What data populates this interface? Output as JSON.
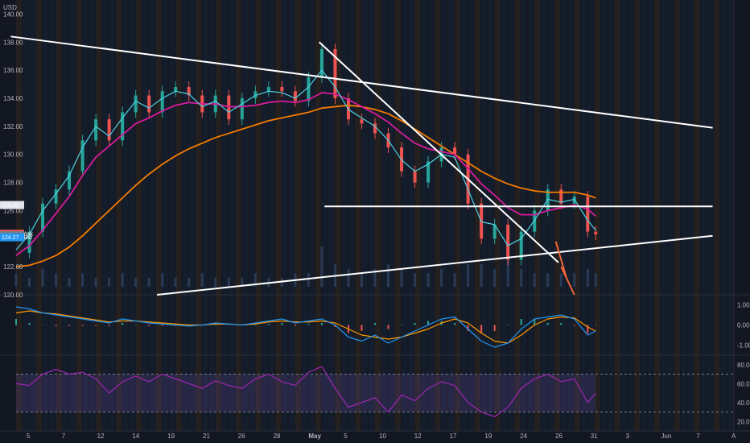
{
  "currency": "USD",
  "chart_data": {
    "type": "line",
    "title": "",
    "price_axis": {
      "ylim": [
        120,
        141
      ],
      "ticks": [
        "140.00",
        "138.00",
        "136.00",
        "134.00",
        "132.00",
        "130.00",
        "128.00",
        "126.00",
        "124.00",
        "122.00",
        "120.00"
      ]
    },
    "price_tags": [
      {
        "label": "126.31",
        "value": 126.31,
        "color": "#e0e3eb",
        "text_color": "#131722"
      },
      {
        "label": "124.35 · Ask",
        "value": 124.35,
        "color": "#ef5350",
        "text_color": "#ffffff"
      },
      {
        "label": "124.33",
        "value": 124.33,
        "color": "#787b86",
        "text_color": "#ffffff"
      },
      {
        "label": "124.27 · Bid",
        "value": 124.27,
        "color": "#2196f3",
        "text_color": "#ffffff"
      }
    ],
    "macd_axis": {
      "ylim": [
        -1.5,
        1.5
      ],
      "ticks": [
        "1.00",
        "0.00",
        "-1.00"
      ]
    },
    "rsi_axis": {
      "ylim": [
        10,
        90
      ],
      "ticks": [
        "80.00",
        "60.00",
        "40.00",
        "20.00"
      ],
      "bands": [
        70,
        30
      ]
    },
    "x_ticks": [
      "5",
      "7",
      "12",
      "14",
      "19",
      "21",
      "26",
      "28",
      "May",
      "5",
      "10",
      "12",
      "17",
      "19",
      "24",
      "26",
      "31",
      "3",
      "Jun",
      "7",
      "A"
    ],
    "x_tick_bold": "May",
    "series": [
      {
        "x": [
          0,
          5,
          10,
          15,
          20,
          25,
          30,
          35,
          40,
          45,
          50,
          55,
          60,
          65,
          70,
          75,
          80,
          85,
          90,
          95,
          100,
          105,
          110,
          115,
          120,
          125,
          130,
          135,
          140,
          145,
          150,
          155,
          160,
          165,
          170,
          175,
          180,
          185,
          190,
          195,
          200,
          205,
          210,
          215,
          218
        ],
        "values": [
          123.0,
          124.5,
          126.5,
          127.5,
          128.8,
          131.0,
          132.5,
          131.0,
          133.0,
          134.2,
          133.0,
          134.5,
          134.8,
          134.2,
          133.0,
          134.2,
          132.5,
          134.0,
          134.5,
          134.8,
          134.5,
          133.8,
          135.5,
          137.5,
          134.0,
          132.5,
          132.2,
          131.5,
          130.5,
          128.8,
          128.0,
          129.5,
          130.5,
          130.0,
          126.5,
          124.0,
          125.0,
          122.5,
          124.5,
          126.0,
          127.5,
          126.5,
          127.0,
          124.5,
          124.3
        ]
      },
      {
        "name": "",
        "color": "#4dd0e1",
        "values": [
          123.2,
          124.3,
          126.0,
          127.2,
          128.5,
          130.5,
          132.0,
          131.3,
          132.6,
          133.8,
          133.3,
          134.0,
          134.5,
          134.3,
          133.4,
          133.8,
          133.0,
          133.6,
          134.2,
          134.5,
          134.4,
          134.0,
          134.8,
          136.0,
          134.8,
          133.2,
          132.6,
          132.0,
          131.0,
          129.6,
          128.8,
          129.3,
          130.0,
          129.8,
          127.5,
          125.2,
          125.0,
          123.5,
          124.0,
          125.3,
          126.8,
          126.6,
          126.8,
          125.3,
          124.6
        ]
      },
      {
        "name": "",
        "color": "#d81b9c",
        "values": [
          122.8,
          123.5,
          124.6,
          125.8,
          127.0,
          128.5,
          129.8,
          130.6,
          131.4,
          132.2,
          132.6,
          133.1,
          133.5,
          133.7,
          133.6,
          133.6,
          133.4,
          133.4,
          133.5,
          133.7,
          133.8,
          133.7,
          133.9,
          134.4,
          134.3,
          133.9,
          133.4,
          132.9,
          132.3,
          131.5,
          130.8,
          130.4,
          130.2,
          130.0,
          129.0,
          127.9,
          127.1,
          126.2,
          125.7,
          125.7,
          126.0,
          126.2,
          126.4,
          126.1,
          125.6
        ]
      },
      {
        "name": "",
        "color": "#f57c00",
        "values": [
          122.0,
          122.1,
          122.4,
          122.8,
          123.4,
          124.2,
          125.1,
          126.0,
          126.9,
          127.8,
          128.6,
          129.3,
          129.9,
          130.4,
          130.8,
          131.2,
          131.5,
          131.8,
          132.1,
          132.4,
          132.6,
          132.8,
          133.0,
          133.3,
          133.4,
          133.5,
          133.4,
          133.2,
          132.9,
          132.4,
          131.8,
          131.2,
          130.6,
          130.0,
          129.4,
          128.8,
          128.3,
          127.9,
          127.6,
          127.4,
          127.3,
          127.3,
          127.3,
          127.1,
          126.9
        ]
      }
    ],
    "trendlines": [
      {
        "points": [
          [
            -2,
            138.4
          ],
          [
            262,
            131.9
          ]
        ],
        "color": "#ffffff"
      },
      {
        "points": [
          [
            53,
            120.0
          ],
          [
            262,
            124.2
          ]
        ],
        "color": "#ffffff"
      },
      {
        "points": [
          [
            114,
            138.0
          ],
          [
            204,
            122.3
          ]
        ],
        "color": "#ffffff"
      },
      {
        "points": [
          [
            116,
            126.3
          ],
          [
            262,
            126.3
          ]
        ],
        "color": "#ffffff"
      }
    ],
    "projection_arrow": {
      "points": [
        [
          203,
          123.8
        ],
        [
          207,
          121.2
        ],
        [
          205,
          122.0
        ],
        [
          210,
          120.0
        ]
      ],
      "color": "#f0663a"
    },
    "macd": {
      "macd_color": "#2196f3",
      "signal_color": "#ff9800",
      "macd": [
        0.9,
        0.8,
        0.6,
        0.5,
        0.4,
        0.3,
        0.2,
        0.1,
        0.3,
        0.2,
        0.1,
        0.05,
        0.0,
        -0.05,
        0.0,
        0.1,
        0.05,
        0.0,
        0.1,
        0.2,
        0.3,
        0.1,
        0.2,
        0.3,
        0.0,
        -0.6,
        -0.8,
        -0.5,
        -0.9,
        -0.6,
        -0.3,
        0.0,
        0.3,
        0.4,
        -0.2,
        -0.8,
        -1.1,
        -0.9,
        -0.2,
        0.3,
        0.4,
        0.5,
        0.3,
        -0.5,
        -0.3
      ],
      "signal": [
        0.6,
        0.7,
        0.6,
        0.55,
        0.45,
        0.35,
        0.25,
        0.15,
        0.2,
        0.2,
        0.15,
        0.1,
        0.05,
        0.0,
        0.0,
        0.05,
        0.05,
        0.0,
        0.05,
        0.15,
        0.2,
        0.15,
        0.15,
        0.2,
        0.1,
        -0.2,
        -0.5,
        -0.6,
        -0.7,
        -0.6,
        -0.4,
        -0.2,
        0.1,
        0.3,
        0.1,
        -0.4,
        -0.8,
        -0.9,
        -0.5,
        0.0,
        0.3,
        0.4,
        0.35,
        -0.1,
        -0.3
      ]
    },
    "rsi": {
      "color": "#9c27b0",
      "values": [
        60,
        58,
        70,
        75,
        70,
        72,
        65,
        50,
        62,
        68,
        62,
        70,
        65,
        60,
        55,
        63,
        58,
        55,
        65,
        70,
        62,
        58,
        72,
        78,
        55,
        35,
        40,
        45,
        30,
        48,
        42,
        55,
        62,
        58,
        40,
        30,
        25,
        35,
        55,
        65,
        70,
        62,
        65,
        40,
        50
      ]
    },
    "volume": {
      "color": "#2a3a55",
      "values": [
        3,
        2,
        4,
        3,
        2,
        3,
        2,
        2,
        3,
        2,
        2,
        3,
        2,
        2,
        3,
        2,
        2,
        2,
        3,
        2,
        2,
        3,
        3,
        9,
        5,
        4,
        3,
        4,
        5,
        4,
        3,
        3,
        4,
        3,
        5,
        5,
        4,
        6,
        4,
        3,
        3,
        3,
        3,
        4,
        3
      ]
    }
  }
}
